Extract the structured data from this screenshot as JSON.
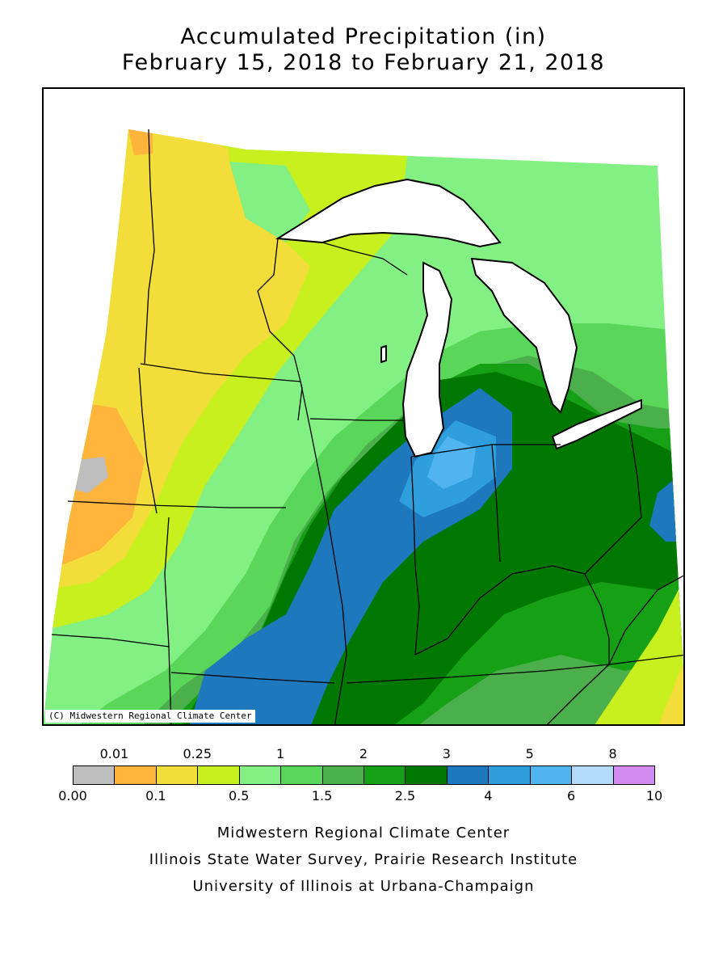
{
  "title": {
    "line1": "Accumulated Precipitation (in)",
    "line2": "February 15, 2018 to February 21, 2018"
  },
  "map": {
    "copyright": "(C) Midwestern Regional Climate Center",
    "units": "in"
  },
  "legend": {
    "top_labels": [
      "0.01",
      "0.25",
      "1",
      "2",
      "3",
      "5",
      "8"
    ],
    "bottom_labels": [
      "0.00",
      "0.1",
      "0.5",
      "1.5",
      "2.5",
      "4",
      "6",
      "10"
    ],
    "bins": [
      {
        "min": 0.0,
        "max": 0.01,
        "color": "#bebebe"
      },
      {
        "min": 0.01,
        "max": 0.1,
        "color": "#ffb43c"
      },
      {
        "min": 0.1,
        "max": 0.25,
        "color": "#f3dd3a"
      },
      {
        "min": 0.25,
        "max": 0.5,
        "color": "#c8f01e"
      },
      {
        "min": 0.5,
        "max": 1,
        "color": "#82f082"
      },
      {
        "min": 1,
        "max": 1.5,
        "color": "#5ad75a"
      },
      {
        "min": 1.5,
        "max": 2,
        "color": "#4bb04b"
      },
      {
        "min": 2,
        "max": 2.5,
        "color": "#16a016"
      },
      {
        "min": 2.5,
        "max": 3,
        "color": "#007800"
      },
      {
        "min": 3,
        "max": 4,
        "color": "#1e78be"
      },
      {
        "min": 4,
        "max": 5,
        "color": "#2e9edc"
      },
      {
        "min": 5,
        "max": 6,
        "color": "#50b4f0"
      },
      {
        "min": 6,
        "max": 8,
        "color": "#b4dcfa"
      },
      {
        "min": 8,
        "max": 10,
        "color": "#d28cf0"
      }
    ]
  },
  "credits": {
    "line1": "Midwestern Regional Climate Center",
    "line2": "Illinois State Water Survey, Prairie Research Institute",
    "line3": "University of Illinois at Urbana-Champaign"
  }
}
